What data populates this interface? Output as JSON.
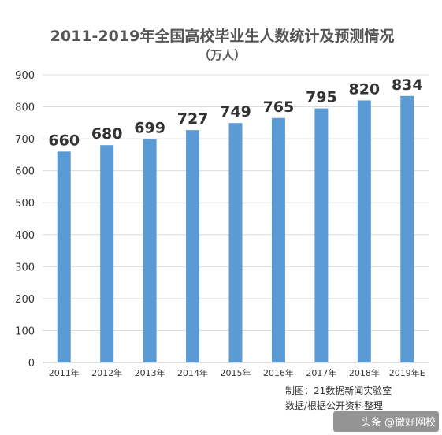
{
  "chart_data": {
    "type": "bar",
    "title": "2011-2019年全国高校毕业生人数统计及预测情况",
    "subtitle": "（万人）",
    "categories": [
      "2011年",
      "2012年",
      "2013年",
      "2014年",
      "2015年",
      "2016年",
      "2017年",
      "2018年",
      "2019年E"
    ],
    "values": [
      660,
      680,
      699,
      727,
      749,
      765,
      795,
      820,
      834
    ],
    "ylim": [
      0,
      900
    ],
    "yticks": [
      0,
      100,
      200,
      300,
      400,
      500,
      600,
      700,
      800,
      900
    ],
    "grid": true,
    "bar_color": "#5b9bd5",
    "legend": "none"
  },
  "credits": {
    "line1": "制图：21数据新闻实验室",
    "line2": "数据/根据公开资料整理"
  },
  "watermark": "头条 @微好网校"
}
